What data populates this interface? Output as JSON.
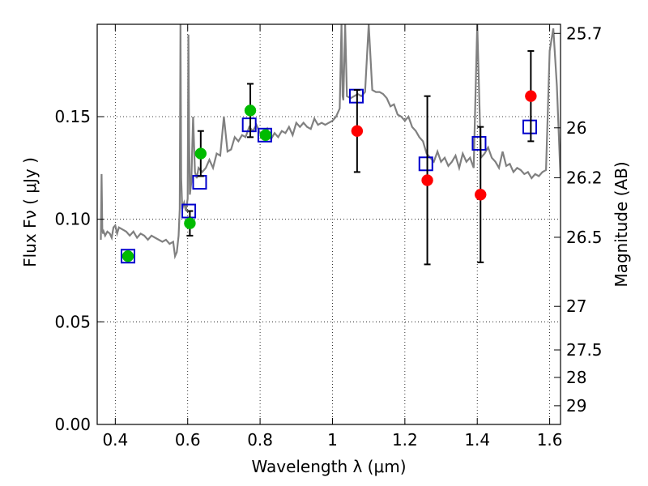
{
  "chart_data": {
    "type": "scatter",
    "xlabel": "Wavelength  λ (μm)",
    "ylabel": "Flux  Fν  ( μJy )",
    "ylabel_right": "Magnitude (AB)",
    "xlim": [
      0.35,
      1.63
    ],
    "ylim": [
      0.0,
      0.195
    ],
    "grid": true,
    "x_ticks": [
      {
        "value": 0.4,
        "label": "0.4"
      },
      {
        "value": 0.6,
        "label": "0.6"
      },
      {
        "value": 0.8,
        "label": "0.8"
      },
      {
        "value": 1.0,
        "label": "1"
      },
      {
        "value": 1.2,
        "label": "1.2"
      },
      {
        "value": 1.4,
        "label": "1.4"
      },
      {
        "value": 1.6,
        "label": "1.6"
      }
    ],
    "y_ticks": [
      {
        "value": 0.0,
        "label": "0.00"
      },
      {
        "value": 0.05,
        "label": "0.05"
      },
      {
        "value": 0.1,
        "label": "0.10"
      },
      {
        "value": 0.15,
        "label": "0.15"
      }
    ],
    "right_ticks": [
      {
        "mag": 25.7,
        "label": "25.7"
      },
      {
        "mag": 26.0,
        "label": "26"
      },
      {
        "mag": 26.2,
        "label": "26.2"
      },
      {
        "mag": 26.5,
        "label": "26.5"
      },
      {
        "mag": 27.0,
        "label": "27"
      },
      {
        "mag": 27.5,
        "label": "27.5"
      },
      {
        "mag": 28.0,
        "label": "28"
      },
      {
        "mag": 29.0,
        "label": "29"
      }
    ],
    "model_spectrum": {
      "color": "#808080",
      "x": [
        0.36,
        0.362,
        0.364,
        0.366,
        0.368,
        0.372,
        0.378,
        0.385,
        0.39,
        0.395,
        0.4,
        0.405,
        0.41,
        0.42,
        0.43,
        0.44,
        0.45,
        0.46,
        0.47,
        0.48,
        0.49,
        0.5,
        0.51,
        0.52,
        0.53,
        0.54,
        0.55,
        0.56,
        0.565,
        0.57,
        0.575,
        0.578,
        0.58,
        0.582,
        0.585,
        0.59,
        0.595,
        0.6,
        0.602,
        0.604,
        0.606,
        0.61,
        0.615,
        0.62,
        0.625,
        0.63,
        0.64,
        0.65,
        0.66,
        0.67,
        0.68,
        0.69,
        0.7,
        0.71,
        0.72,
        0.73,
        0.74,
        0.75,
        0.76,
        0.77,
        0.78,
        0.79,
        0.8,
        0.81,
        0.82,
        0.83,
        0.84,
        0.85,
        0.86,
        0.87,
        0.88,
        0.89,
        0.9,
        0.91,
        0.92,
        0.93,
        0.94,
        0.95,
        0.96,
        0.97,
        0.98,
        0.99,
        1.0,
        1.01,
        1.02,
        1.025,
        1.028,
        1.03,
        1.035,
        1.04,
        1.05,
        1.06,
        1.07,
        1.08,
        1.09,
        1.1,
        1.11,
        1.12,
        1.13,
        1.14,
        1.15,
        1.16,
        1.17,
        1.18,
        1.19,
        1.2,
        1.21,
        1.22,
        1.23,
        1.24,
        1.25,
        1.26,
        1.27,
        1.28,
        1.29,
        1.3,
        1.31,
        1.32,
        1.33,
        1.34,
        1.35,
        1.36,
        1.37,
        1.38,
        1.39,
        1.4,
        1.41,
        1.42,
        1.43,
        1.44,
        1.45,
        1.46,
        1.47,
        1.48,
        1.49,
        1.5,
        1.51,
        1.52,
        1.53,
        1.54,
        1.55,
        1.56,
        1.57,
        1.58,
        1.59,
        1.6,
        1.61,
        1.62,
        1.63
      ],
      "y": [
        0.09,
        0.122,
        0.095,
        0.093,
        0.094,
        0.092,
        0.094,
        0.093,
        0.091,
        0.096,
        0.097,
        0.093,
        0.096,
        0.095,
        0.094,
        0.092,
        0.094,
        0.091,
        0.093,
        0.092,
        0.09,
        0.092,
        0.091,
        0.09,
        0.089,
        0.09,
        0.088,
        0.089,
        0.082,
        0.084,
        0.092,
        0.105,
        0.195,
        0.12,
        0.105,
        0.108,
        0.104,
        0.11,
        0.19,
        0.14,
        0.112,
        0.118,
        0.15,
        0.123,
        0.12,
        0.125,
        0.123,
        0.125,
        0.129,
        0.125,
        0.132,
        0.131,
        0.15,
        0.133,
        0.134,
        0.14,
        0.138,
        0.141,
        0.14,
        0.145,
        0.143,
        0.146,
        0.142,
        0.14,
        0.144,
        0.139,
        0.142,
        0.14,
        0.143,
        0.142,
        0.145,
        0.141,
        0.147,
        0.145,
        0.147,
        0.145,
        0.144,
        0.149,
        0.146,
        0.147,
        0.146,
        0.147,
        0.148,
        0.15,
        0.154,
        0.195,
        0.16,
        0.158,
        0.195,
        0.16,
        0.159,
        0.16,
        0.161,
        0.16,
        0.162,
        0.195,
        0.163,
        0.162,
        0.162,
        0.161,
        0.159,
        0.155,
        0.156,
        0.151,
        0.15,
        0.148,
        0.15,
        0.145,
        0.143,
        0.14,
        0.138,
        0.132,
        0.13,
        0.128,
        0.133,
        0.128,
        0.13,
        0.126,
        0.128,
        0.131,
        0.125,
        0.132,
        0.128,
        0.13,
        0.125,
        0.195,
        0.13,
        0.132,
        0.135,
        0.13,
        0.128,
        0.125,
        0.133,
        0.126,
        0.127,
        0.123,
        0.125,
        0.124,
        0.122,
        0.123,
        0.12,
        0.122,
        0.121,
        0.123,
        0.124,
        0.182,
        0.193,
        0.165,
        0.12
      ]
    },
    "series": [
      {
        "marker": "open-square",
        "color": "#0000cc",
        "x": [
          0.435,
          0.603,
          0.633,
          0.77,
          0.813,
          1.066,
          1.258,
          1.405,
          1.545
        ],
        "y": [
          0.082,
          0.104,
          0.118,
          0.146,
          0.141,
          0.16,
          0.127,
          0.137,
          0.145
        ]
      },
      {
        "marker": "filled-circle",
        "color": "#00bb00",
        "x": [
          0.435,
          0.606,
          0.636,
          0.773,
          0.815
        ],
        "y": [
          0.082,
          0.098,
          0.132,
          0.153,
          0.141
        ],
        "yerr": [
          null,
          0.006,
          0.011,
          0.013,
          null
        ]
      },
      {
        "marker": "filled-circle",
        "color": "#ff0000",
        "x": [
          1.068,
          1.262,
          1.409,
          1.548
        ],
        "y": [
          0.143,
          0.119,
          0.112,
          0.16
        ],
        "yerr": [
          0.02,
          0.041,
          0.033,
          0.022
        ]
      }
    ]
  }
}
